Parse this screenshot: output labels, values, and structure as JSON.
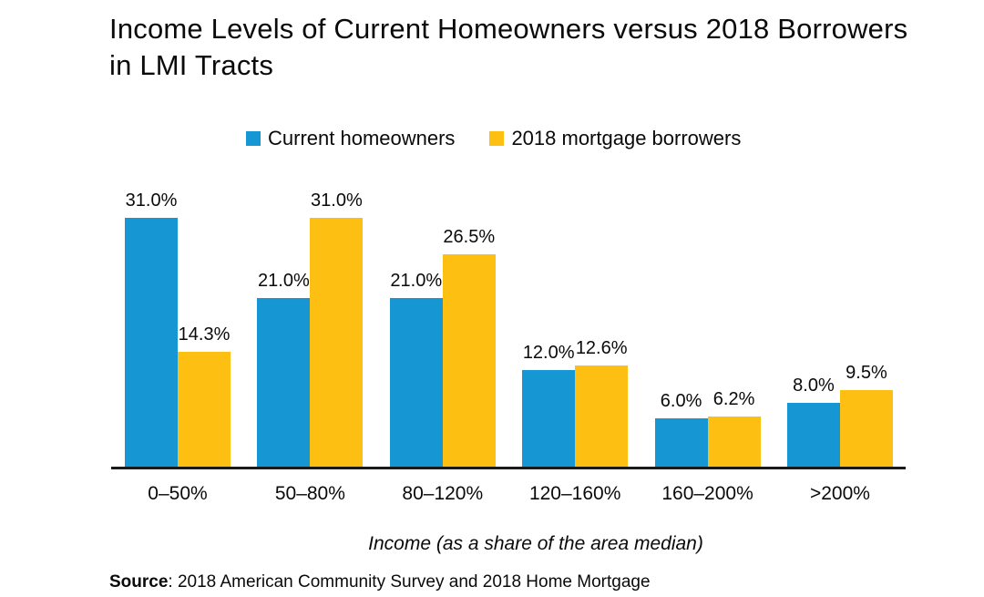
{
  "title": "Income Levels of Current Homeowners versus 2018 Borrowers in LMI Tracts",
  "legend": [
    {
      "label": "Current homeowners",
      "color": "#1696d2"
    },
    {
      "label": "2018 mortgage borrowers",
      "color": "#fdbf11"
    }
  ],
  "chart_data": {
    "type": "bar",
    "title": "Income Levels of Current Homeowners versus 2018 Borrowers in LMI Tracts",
    "categories": [
      "0–50%",
      "50–80%",
      "80–120%",
      "120–160%",
      "160–200%",
      ">200%"
    ],
    "series": [
      {
        "name": "Current homeowners",
        "color": "#1696d2",
        "values": [
          31.0,
          21.0,
          21.0,
          12.0,
          6.0,
          8.0
        ],
        "labels": [
          "31.0%",
          "21.0%",
          "21.0%",
          "12.0%",
          "6.0%",
          "8.0%"
        ]
      },
      {
        "name": "2018 mortgage borrowers",
        "color": "#fdbf11",
        "values": [
          14.3,
          31.0,
          26.5,
          12.6,
          6.2,
          9.5
        ],
        "labels": [
          "14.3%",
          "31.0%",
          "26.5%",
          "12.6%",
          "6.2%",
          "9.5%"
        ]
      }
    ],
    "xlabel": "Income (as a share of the area median)",
    "ylabel": "",
    "ylim": [
      0,
      35
    ],
    "grid": false,
    "legend_position": "top",
    "data_labels": true
  },
  "x_axis_title": "Income (as a share of the area median)",
  "source": {
    "prefix": "Source",
    "text": ": 2018 American Community Survey and 2018 Home Mortgage"
  }
}
